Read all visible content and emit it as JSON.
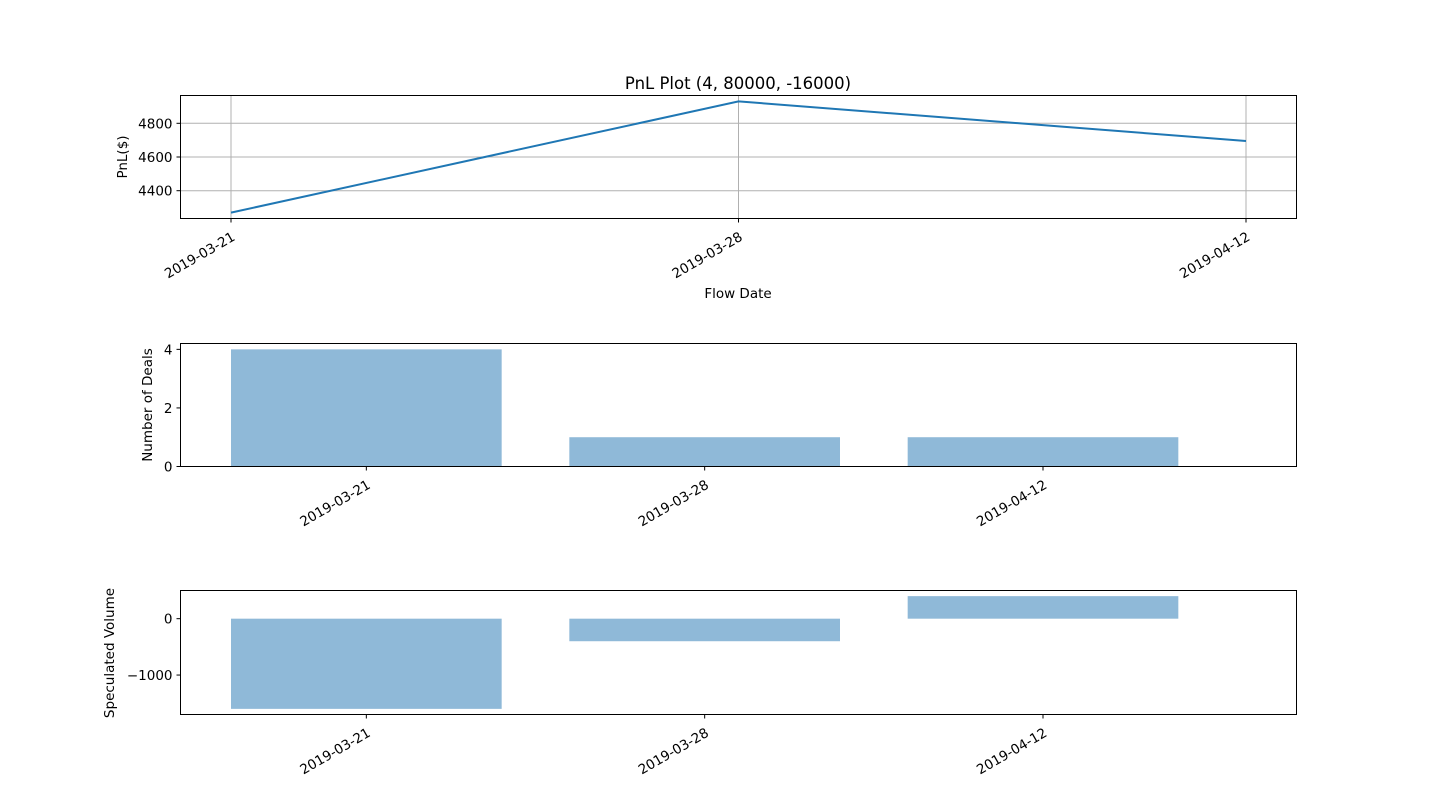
{
  "colors": {
    "line": "#1f77b4",
    "bar": "#8fb9d8",
    "grid": "#b0b0b0",
    "axis": "#000000"
  },
  "chart_data": [
    {
      "type": "line",
      "title": "PnL Plot (4, 80000, -16000)",
      "xlabel": "Flow Date",
      "ylabel": "PnL($)",
      "x": [
        "2019-03-21",
        "2019-03-28",
        "2019-04-12"
      ],
      "series": [
        {
          "values": [
            4270,
            4930,
            4695
          ]
        }
      ],
      "ylim": [
        4235,
        4965
      ],
      "yticks": [
        4400,
        4600,
        4800
      ],
      "grid": true
    },
    {
      "type": "bar",
      "title": "",
      "xlabel": "",
      "ylabel": "Number of Deals",
      "categories": [
        "2019-03-21",
        "2019-03-28",
        "2019-04-12"
      ],
      "values": [
        4,
        1,
        1
      ],
      "ylim": [
        0,
        4.2
      ],
      "yticks": [
        0,
        2,
        4
      ],
      "grid": false
    },
    {
      "type": "bar",
      "title": "",
      "xlabel": "",
      "ylabel": "Speculated Volume",
      "categories": [
        "2019-03-21",
        "2019-03-28",
        "2019-04-12"
      ],
      "values": [
        -1600,
        -400,
        400
      ],
      "ylim": [
        -1700,
        500
      ],
      "yticks": [
        -1000,
        0
      ],
      "ytick_labels": [
        "−1000",
        "0"
      ],
      "grid": false
    }
  ]
}
